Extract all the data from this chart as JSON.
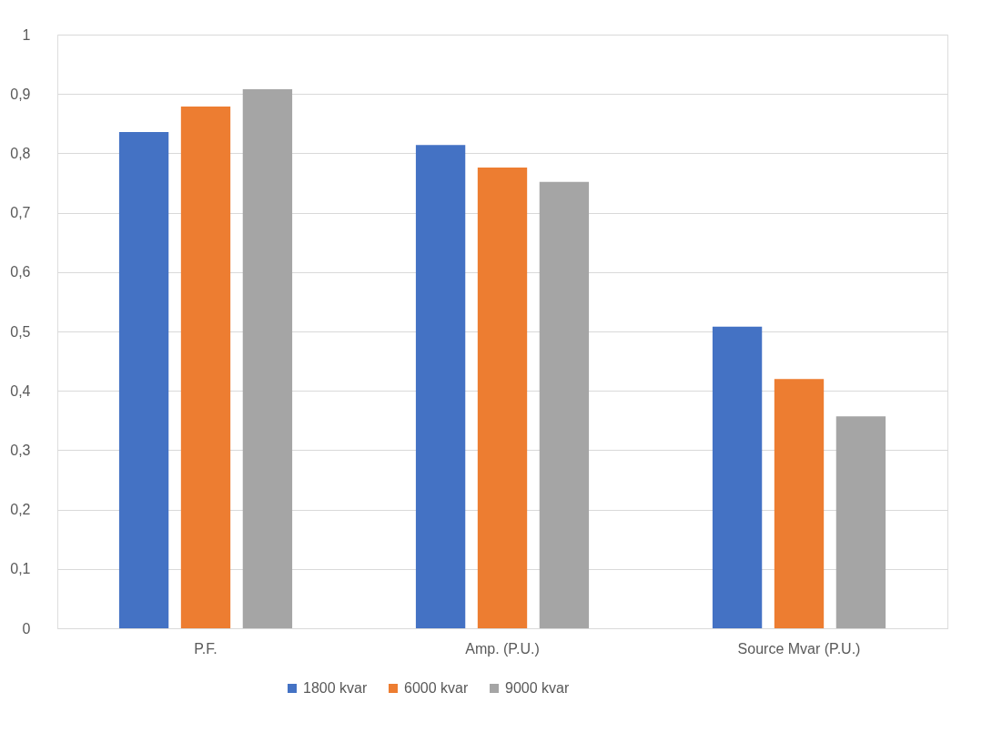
{
  "chart_data": {
    "type": "bar",
    "categories": [
      "P.F.",
      "Amp. (P.U.)",
      "Source Mvar (P.U.)"
    ],
    "series": [
      {
        "name": "1800 kvar",
        "color": "#4472c4",
        "values": [
          0.836,
          0.814,
          0.508
        ]
      },
      {
        "name": "6000 kvar",
        "color": "#ed7d31",
        "values": [
          0.879,
          0.776,
          0.42
        ]
      },
      {
        "name": "9000 kvar",
        "color": "#a5a5a5",
        "values": [
          0.908,
          0.752,
          0.357
        ]
      }
    ],
    "ylim": [
      0,
      1
    ],
    "yticks": [
      0,
      {
        "value": 0.1,
        "label": "0,1"
      },
      {
        "value": 0.2,
        "label": "0,2"
      },
      {
        "value": 0.3,
        "label": "0,3"
      },
      {
        "value": 0.4,
        "label": "0,4"
      },
      {
        "value": 0.5,
        "label": "0,5"
      },
      {
        "value": 0.6,
        "label": "0,6"
      },
      {
        "value": 0.7,
        "label": "0,7"
      },
      {
        "value": 0.8,
        "label": "0,8"
      },
      {
        "value": 0.9,
        "label": "0,9"
      },
      1
    ],
    "grid": "y",
    "legend": "bottom"
  }
}
